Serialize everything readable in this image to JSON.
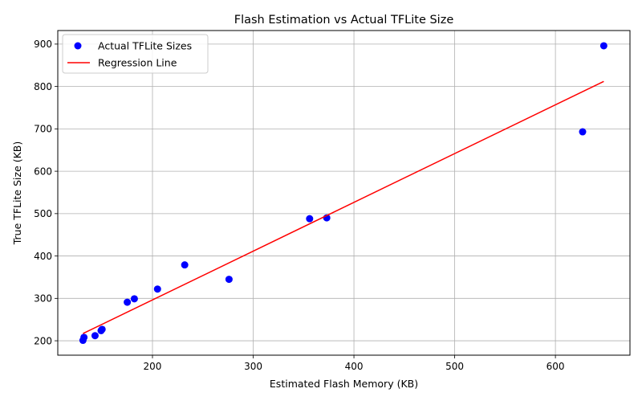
{
  "chart_data": {
    "type": "scatter",
    "title": "Flash Estimation vs Actual TFLite Size",
    "xlabel": "Estimated Flash Memory (KB)",
    "ylabel": "True TFLite Size (KB)",
    "xlim": [
      106,
      674
    ],
    "ylim": [
      166,
      932
    ],
    "xticks": [
      200,
      300,
      400,
      500,
      600
    ],
    "yticks": [
      200,
      300,
      400,
      500,
      600,
      700,
      800,
      900
    ],
    "grid": true,
    "legend_position": "upper-left",
    "series": [
      {
        "name": "Actual TFLite Sizes",
        "kind": "scatter",
        "color": "#0000ff",
        "x": [
          131,
          132,
          143,
          149,
          150,
          175,
          182,
          205,
          232,
          276,
          356,
          373,
          627,
          648
        ],
        "y": [
          201,
          208,
          212,
          224,
          227,
          291,
          299,
          322,
          379,
          345,
          488,
          490,
          693,
          896
        ]
      },
      {
        "name": "Regression Line",
        "kind": "line",
        "color": "#ff0000",
        "x": [
          131,
          648
        ],
        "y": [
          217,
          812
        ]
      }
    ]
  }
}
